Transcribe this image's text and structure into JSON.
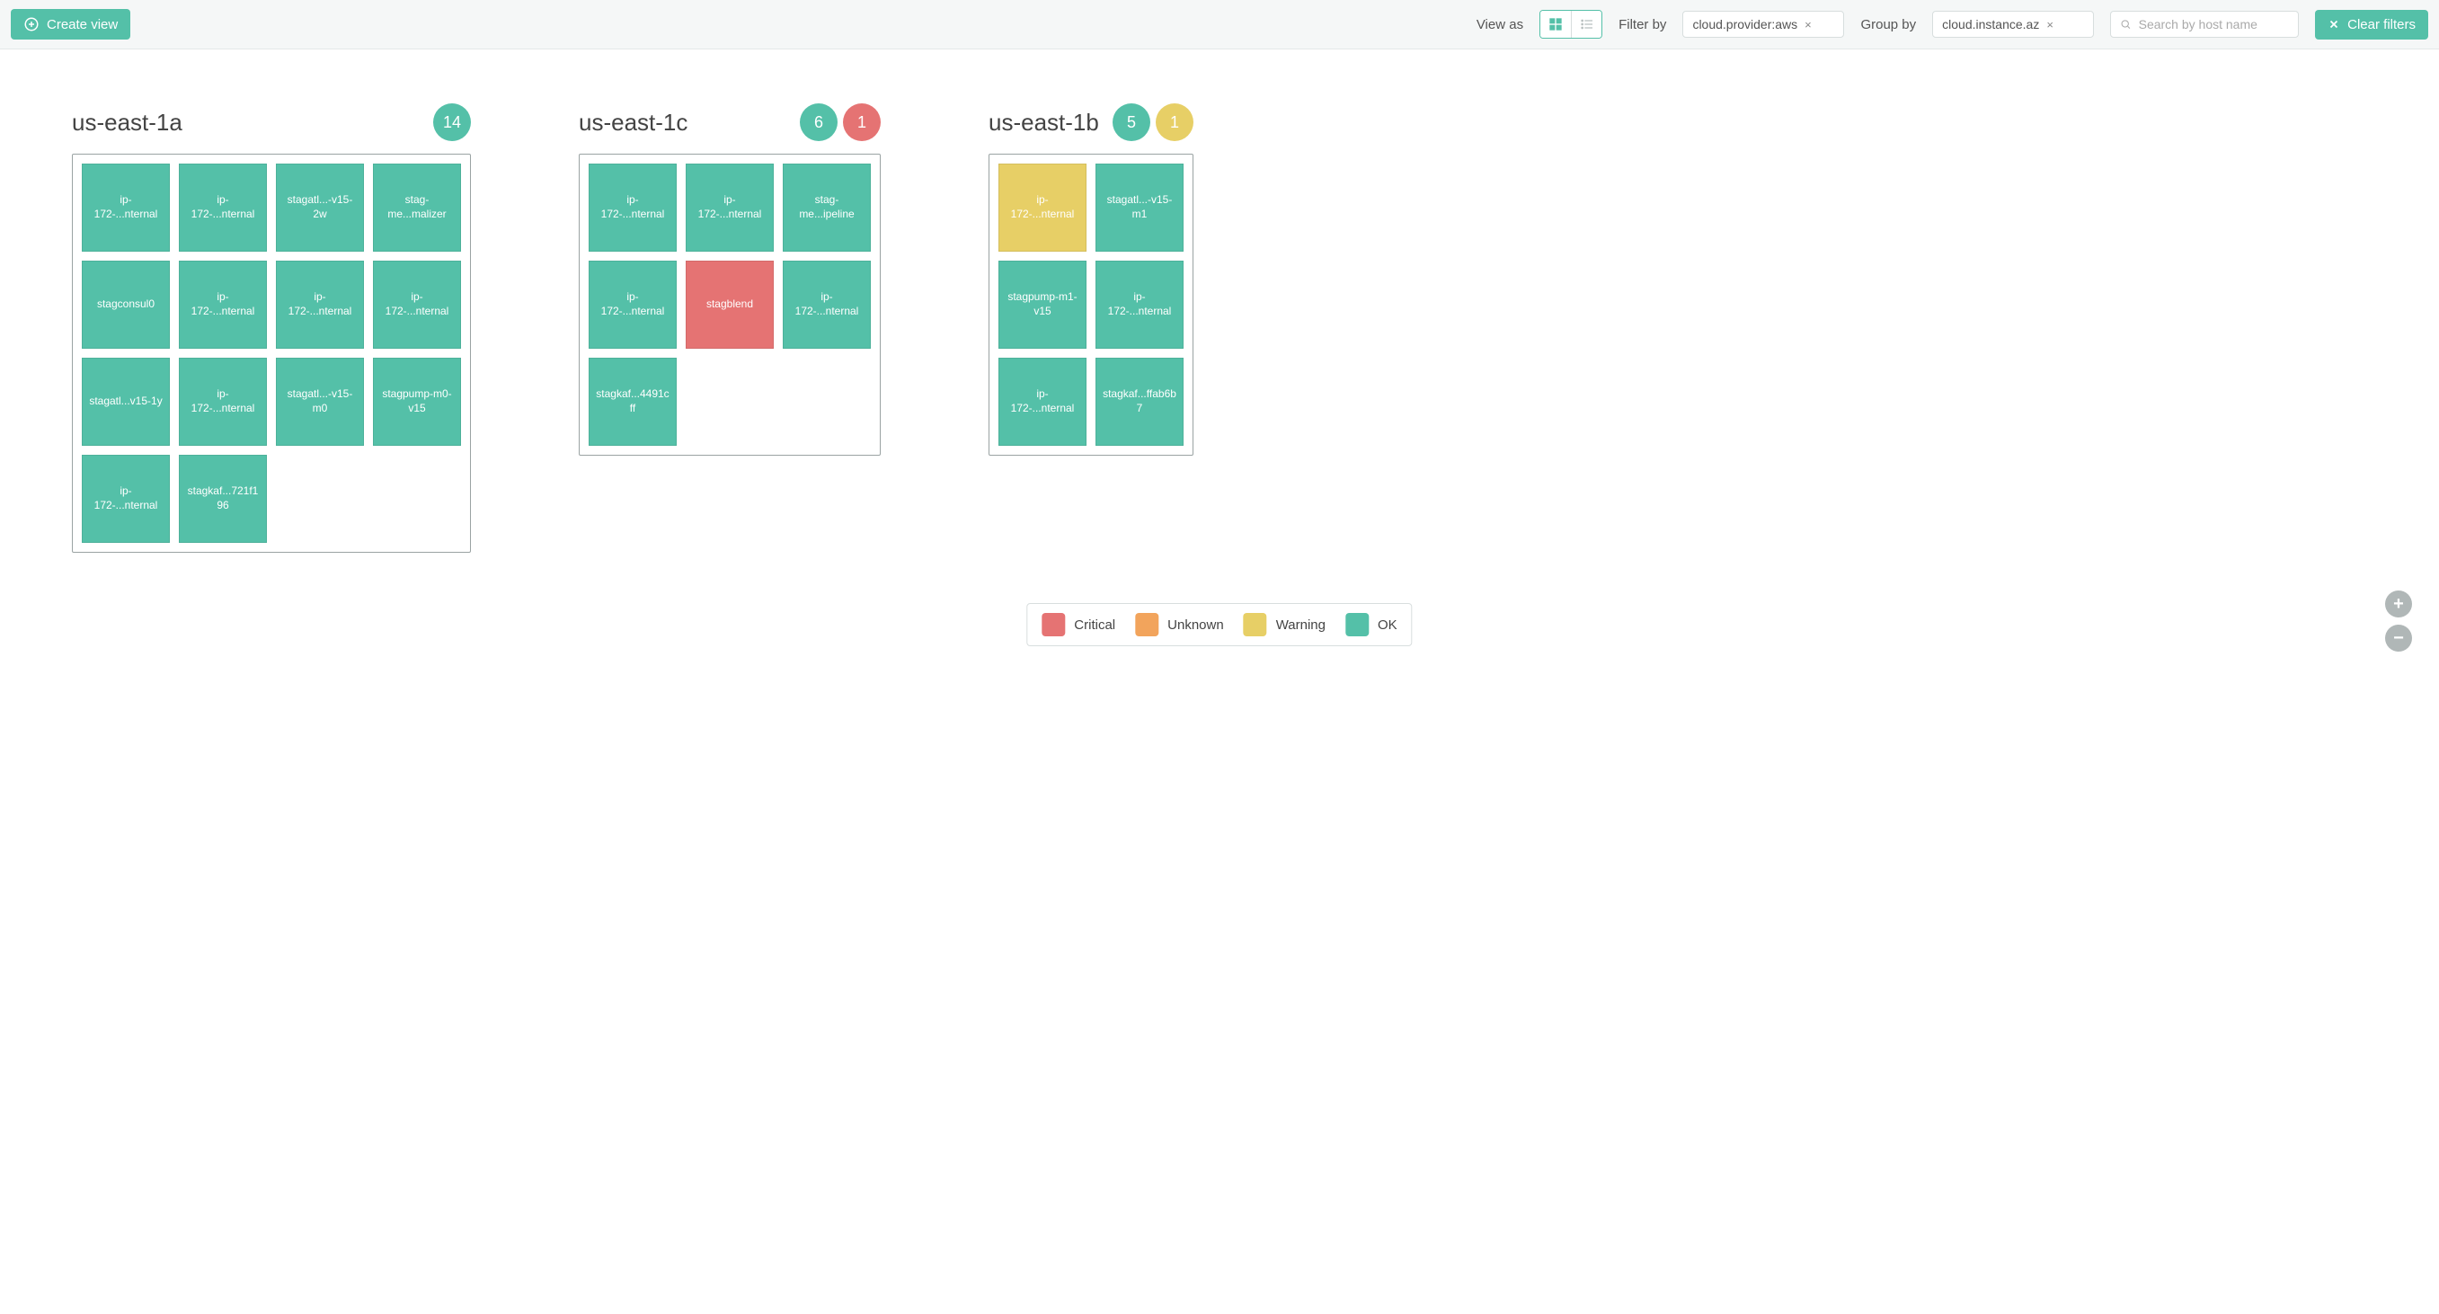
{
  "colors": {
    "ok": "#54c0a8",
    "warning": "#e7cf66",
    "critical": "#e57373",
    "unknown": "#f2a45c",
    "badge_ok": "#54c0a8",
    "badge_critical": "#e57373",
    "badge_warning": "#e7cf66"
  },
  "toolbar": {
    "create_view_label": "Create view",
    "view_as_label": "View as",
    "filter_by_label": "Filter by",
    "filter_value": "cloud.provider:aws",
    "group_by_label": "Group by",
    "group_value": "cloud.instance.az",
    "search_placeholder": "Search by host name",
    "clear_filters_label": "Clear filters"
  },
  "legend": {
    "items": [
      {
        "label": "Critical",
        "color_key": "critical"
      },
      {
        "label": "Unknown",
        "color_key": "unknown"
      },
      {
        "label": "Warning",
        "color_key": "warning"
      },
      {
        "label": "OK",
        "color_key": "ok"
      }
    ]
  },
  "groups": [
    {
      "title": "us-east-1a",
      "columns": 4,
      "counts": [
        {
          "value": 14,
          "color_key": "badge_ok"
        }
      ],
      "hosts": [
        {
          "label": "ip-172-...nternal",
          "status": "ok"
        },
        {
          "label": "ip-172-...nternal",
          "status": "ok"
        },
        {
          "label": "stagatl...-v15-2w",
          "status": "ok"
        },
        {
          "label": "stag-me...malizer",
          "status": "ok"
        },
        {
          "label": "stagconsul0",
          "status": "ok"
        },
        {
          "label": "ip-172-...nternal",
          "status": "ok"
        },
        {
          "label": "ip-172-...nternal",
          "status": "ok"
        },
        {
          "label": "ip-172-...nternal",
          "status": "ok"
        },
        {
          "label": "stagatl...v15-1y",
          "status": "ok"
        },
        {
          "label": "ip-172-...nternal",
          "status": "ok"
        },
        {
          "label": "stagatl...-v15-m0",
          "status": "ok"
        },
        {
          "label": "stagpump-m0-v15",
          "status": "ok"
        },
        {
          "label": "ip-172-...nternal",
          "status": "ok"
        },
        {
          "label": "stagkaf...721f196",
          "status": "ok"
        }
      ]
    },
    {
      "title": "us-east-1c",
      "columns": 3,
      "counts": [
        {
          "value": 6,
          "color_key": "badge_ok"
        },
        {
          "value": 1,
          "color_key": "badge_critical"
        }
      ],
      "hosts": [
        {
          "label": "ip-172-...nternal",
          "status": "ok"
        },
        {
          "label": "ip-172-...nternal",
          "status": "ok"
        },
        {
          "label": "stag-me...ipeline",
          "status": "ok"
        },
        {
          "label": "ip-172-...nternal",
          "status": "ok"
        },
        {
          "label": "stagblend",
          "status": "critical"
        },
        {
          "label": "ip-172-...nternal",
          "status": "ok"
        },
        {
          "label": "stagkaf...4491cff",
          "status": "ok"
        }
      ]
    },
    {
      "title": "us-east-1b",
      "columns": 2,
      "counts": [
        {
          "value": 5,
          "color_key": "badge_ok"
        },
        {
          "value": 1,
          "color_key": "badge_warning"
        }
      ],
      "hosts": [
        {
          "label": "ip-172-...nternal",
          "status": "warning"
        },
        {
          "label": "stagatl...-v15-m1",
          "status": "ok"
        },
        {
          "label": "stagpump-m1-v15",
          "status": "ok"
        },
        {
          "label": "ip-172-...nternal",
          "status": "ok"
        },
        {
          "label": "ip-172-...nternal",
          "status": "ok"
        },
        {
          "label": "stagkaf...ffab6b7",
          "status": "ok"
        }
      ]
    }
  ]
}
